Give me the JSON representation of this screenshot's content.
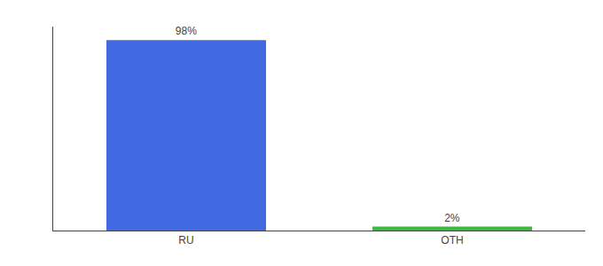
{
  "chart_data": {
    "type": "bar",
    "categories": [
      "RU",
      "OTH"
    ],
    "values": [
      98,
      2
    ],
    "value_labels": [
      "98%",
      "2%"
    ],
    "colors": [
      "#4169e1",
      "#3dbb3d"
    ],
    "ylim": [
      0,
      105
    ],
    "data_labels": true,
    "tick_labels": "x",
    "grid": false
  }
}
